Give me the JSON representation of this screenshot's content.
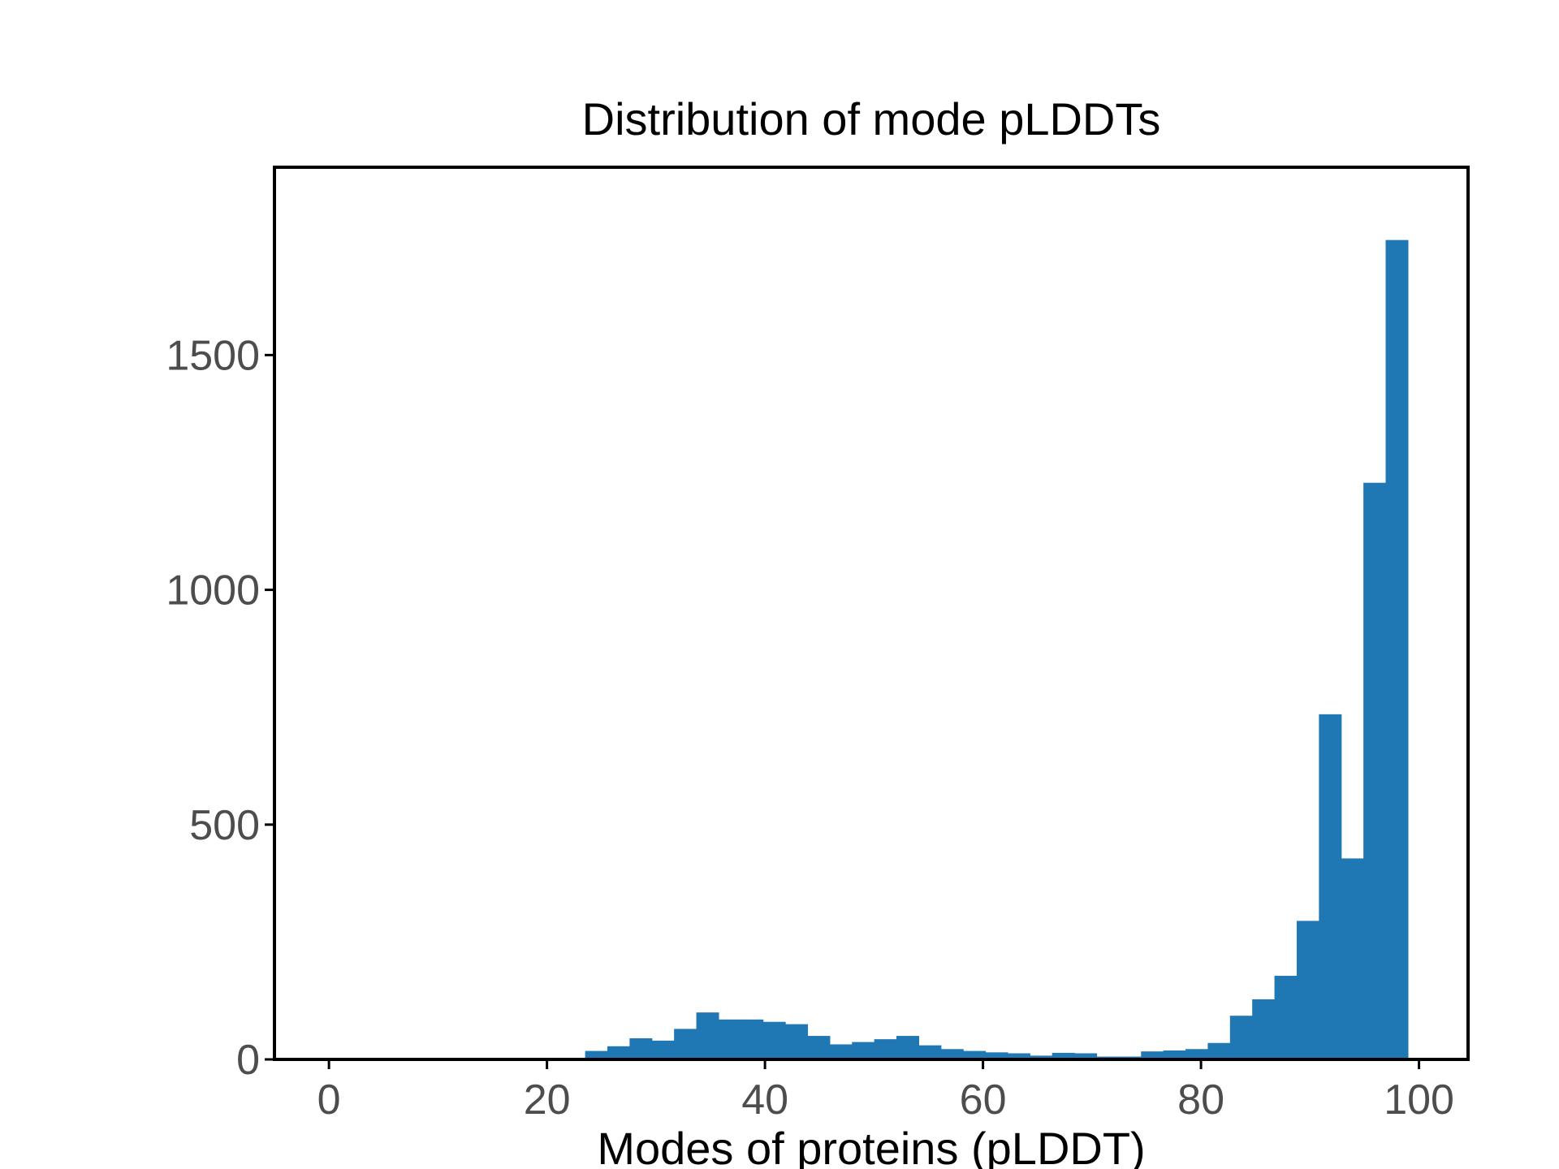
{
  "chart_data": {
    "type": "bar",
    "title": "Distribution of mode pLDDTs",
    "xlabel": "Modes of proteins (pLDDT)",
    "ylabel": "",
    "xlim": [
      -5,
      104.5
    ],
    "ylim": [
      0,
      1900
    ],
    "x_ticks": [
      0,
      20,
      40,
      60,
      80,
      100
    ],
    "x_tick_labels": [
      "0",
      "20",
      "40",
      "60",
      "80",
      "100"
    ],
    "y_ticks": [
      0,
      500,
      1000,
      1500
    ],
    "y_tick_labels": [
      "0",
      "500",
      "1000",
      "1500"
    ],
    "bar_color": "#1f77b4",
    "frame_color": "#000000",
    "grid": false,
    "bin_width": 2.04,
    "bin_starts": [
      23.5,
      25.54,
      27.58,
      29.62,
      31.66,
      33.7,
      35.74,
      37.78,
      39.82,
      41.86,
      43.9,
      45.94,
      47.98,
      50.02,
      52.06,
      54.1,
      56.14,
      58.18,
      60.22,
      62.26,
      64.3,
      66.34,
      68.38,
      70.42,
      72.46,
      74.5,
      76.54,
      78.58,
      80.62,
      82.66,
      84.7,
      86.74,
      88.78,
      90.82,
      92.86,
      94.9,
      96.94
    ],
    "values": [
      18,
      28,
      45,
      40,
      65,
      100,
      85,
      85,
      80,
      75,
      50,
      32,
      37,
      43,
      50,
      30,
      22,
      18,
      15,
      13,
      8,
      14,
      13,
      6,
      6,
      17,
      19,
      22,
      35,
      93,
      128,
      178,
      295,
      735,
      428,
      1228,
      1745
    ]
  }
}
